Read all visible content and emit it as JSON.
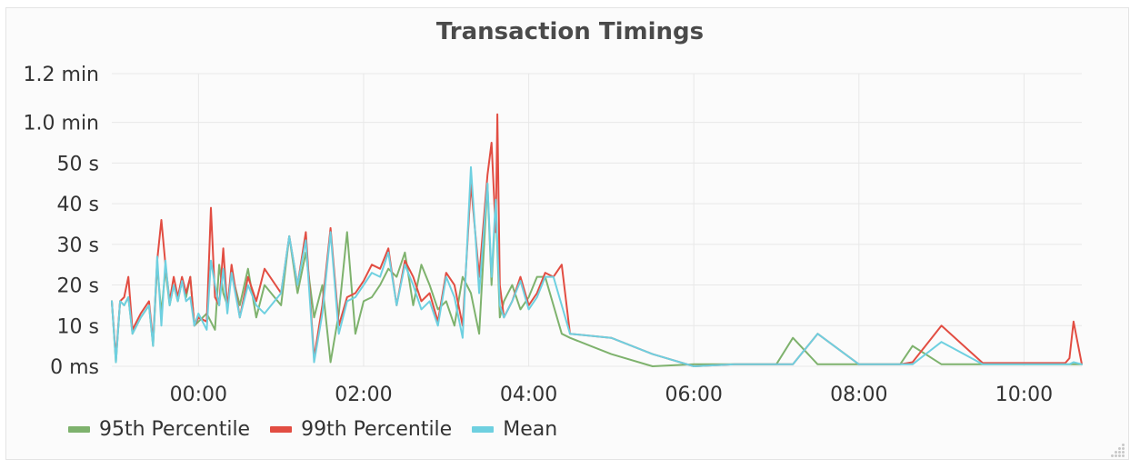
{
  "panel": {
    "title": "Transaction Timings"
  },
  "colors": {
    "p95": "#7eb26d",
    "p99": "#e24d42",
    "mean": "#6ed0e0",
    "grid": "#e8e8e8",
    "tick_text": "#333333"
  },
  "chart_data": {
    "type": "line",
    "title": "Transaction Timings",
    "xlabel": "",
    "ylabel": "",
    "x_unit": "hours (clock time)",
    "y_unit": "seconds",
    "xlim": [
      -1.05,
      10.7
    ],
    "ylim": [
      0,
      72
    ],
    "grid": true,
    "legend_position": "bottom-left",
    "y_ticks": [
      {
        "value": 0,
        "label": "0 ms"
      },
      {
        "value": 10,
        "label": "10 s"
      },
      {
        "value": 20,
        "label": "20 s"
      },
      {
        "value": 30,
        "label": "30 s"
      },
      {
        "value": 40,
        "label": "40 s"
      },
      {
        "value": 50,
        "label": "50 s"
      },
      {
        "value": 60,
        "label": "1.0 min"
      },
      {
        "value": 72,
        "label": "1.2 min"
      }
    ],
    "x_ticks": [
      {
        "value": 0,
        "label": "00:00"
      },
      {
        "value": 2,
        "label": "02:00"
      },
      {
        "value": 4,
        "label": "04:00"
      },
      {
        "value": 6,
        "label": "06:00"
      },
      {
        "value": 8,
        "label": "08:00"
      },
      {
        "value": 10,
        "label": "10:00"
      }
    ],
    "series": [
      {
        "name": "95th Percentile",
        "color": "#7eb26d",
        "x": [
          -1.05,
          -1.0,
          -0.95,
          -0.9,
          -0.85,
          -0.8,
          -0.7,
          -0.6,
          -0.55,
          -0.5,
          -0.45,
          -0.4,
          -0.35,
          -0.3,
          -0.25,
          -0.2,
          -0.15,
          -0.1,
          -0.05,
          0.1,
          0.2,
          0.25,
          0.3,
          0.35,
          0.4,
          0.5,
          0.6,
          0.7,
          0.8,
          1.0,
          1.1,
          1.2,
          1.3,
          1.4,
          1.5,
          1.6,
          1.7,
          1.8,
          1.9,
          2.0,
          2.1,
          2.2,
          2.3,
          2.4,
          2.5,
          2.6,
          2.7,
          2.8,
          2.9,
          3.0,
          3.1,
          3.2,
          3.3,
          3.4,
          3.5,
          3.55,
          3.6,
          3.65,
          3.7,
          3.8,
          3.9,
          4.0,
          4.1,
          4.2,
          4.3,
          4.4,
          4.5,
          5.0,
          5.5,
          6.0,
          6.5,
          7.0,
          7.2,
          7.5,
          8.0,
          8.5,
          8.65,
          9.0,
          9.5,
          10.0,
          10.5,
          10.7
        ],
        "y": [
          16,
          1,
          16,
          15,
          17,
          8,
          12,
          15,
          5,
          25,
          13,
          24,
          15,
          20,
          16,
          21,
          17,
          22,
          10,
          13,
          9,
          25,
          18,
          15,
          23,
          15,
          24,
          12,
          20,
          15,
          32,
          18,
          28,
          12,
          20,
          1,
          13,
          33,
          8,
          16,
          17,
          20,
          24,
          22,
          28,
          15,
          25,
          20,
          14,
          16,
          10,
          22,
          18,
          8,
          45,
          20,
          40,
          12,
          16,
          20,
          14,
          17,
          22,
          22,
          15,
          8,
          7,
          3,
          0,
          0.5,
          0.5,
          0.5,
          7,
          0.5,
          0.5,
          0.5,
          5,
          0.5,
          0.5,
          0.5,
          0.5,
          0.5
        ]
      },
      {
        "name": "99th Percentile",
        "color": "#e24d42",
        "x": [
          -1.05,
          -1.0,
          -0.95,
          -0.9,
          -0.85,
          -0.8,
          -0.7,
          -0.6,
          -0.55,
          -0.5,
          -0.45,
          -0.4,
          -0.35,
          -0.3,
          -0.25,
          -0.2,
          -0.15,
          -0.1,
          -0.05,
          0.0,
          0.1,
          0.15,
          0.2,
          0.25,
          0.3,
          0.35,
          0.4,
          0.5,
          0.6,
          0.7,
          0.8,
          1.0,
          1.1,
          1.2,
          1.3,
          1.4,
          1.5,
          1.6,
          1.7,
          1.8,
          1.9,
          2.0,
          2.1,
          2.2,
          2.3,
          2.4,
          2.5,
          2.6,
          2.7,
          2.8,
          2.9,
          3.0,
          3.1,
          3.2,
          3.3,
          3.4,
          3.5,
          3.55,
          3.6,
          3.62,
          3.65,
          3.7,
          3.8,
          3.9,
          4.0,
          4.1,
          4.2,
          4.3,
          4.4,
          4.5,
          5.0,
          5.5,
          6.0,
          6.5,
          7.0,
          7.2,
          7.5,
          8.0,
          8.5,
          8.65,
          9.0,
          9.5,
          10.0,
          10.5,
          10.55,
          10.6,
          10.7
        ],
        "y": [
          16,
          2,
          16,
          17,
          22,
          9,
          13,
          16,
          6,
          26,
          36,
          25,
          16,
          22,
          17,
          22,
          18,
          22,
          10,
          12,
          11,
          39,
          17,
          15,
          29,
          14,
          25,
          12,
          22,
          16,
          24,
          18,
          32,
          20,
          33,
          2,
          15,
          34,
          10,
          17,
          18,
          21,
          25,
          24,
          29,
          15,
          26,
          22,
          16,
          18,
          11,
          23,
          20,
          10,
          45,
          22,
          47,
          55,
          33,
          62,
          20,
          12,
          16,
          22,
          15,
          18,
          23,
          22,
          25,
          8,
          7,
          3,
          0,
          0.5,
          0.5,
          0.5,
          8,
          0.5,
          0.5,
          1,
          10,
          0.8,
          0.8,
          0.8,
          2,
          11,
          0.5
        ]
      },
      {
        "name": "Mean",
        "color": "#6ed0e0",
        "x": [
          -1.05,
          -1.0,
          -0.95,
          -0.9,
          -0.85,
          -0.8,
          -0.7,
          -0.6,
          -0.55,
          -0.5,
          -0.45,
          -0.4,
          -0.35,
          -0.3,
          -0.25,
          -0.2,
          -0.15,
          -0.1,
          -0.05,
          0.0,
          0.1,
          0.15,
          0.2,
          0.25,
          0.3,
          0.35,
          0.4,
          0.5,
          0.6,
          0.7,
          0.8,
          1.0,
          1.1,
          1.2,
          1.3,
          1.4,
          1.5,
          1.6,
          1.7,
          1.8,
          1.9,
          2.0,
          2.1,
          2.2,
          2.3,
          2.4,
          2.5,
          2.6,
          2.7,
          2.8,
          2.9,
          3.0,
          3.1,
          3.2,
          3.3,
          3.4,
          3.5,
          3.55,
          3.6,
          3.62,
          3.65,
          3.7,
          3.8,
          3.9,
          4.0,
          4.1,
          4.2,
          4.3,
          4.4,
          4.5,
          5.0,
          5.5,
          6.0,
          6.5,
          7.0,
          7.2,
          7.5,
          8.0,
          8.5,
          8.65,
          9.0,
          9.5,
          10.0,
          10.5,
          10.55,
          10.6,
          10.7
        ],
        "y": [
          16,
          1,
          16,
          15,
          17,
          8,
          12,
          15,
          5,
          27,
          10,
          26,
          15,
          20,
          16,
          21,
          16,
          17,
          10,
          13,
          9,
          26,
          20,
          15,
          24,
          13,
          23,
          12,
          20,
          15,
          13,
          18,
          32,
          20,
          31,
          1,
          13,
          33,
          8,
          16,
          17,
          20,
          23,
          22,
          28,
          15,
          25,
          20,
          14,
          16,
          10,
          22,
          17,
          7,
          49,
          18,
          45,
          22,
          41,
          30,
          15,
          12,
          16,
          21,
          14,
          17,
          22,
          22,
          15,
          8,
          7,
          3,
          0,
          0.5,
          0.5,
          0.5,
          8,
          0.5,
          0.5,
          0.5,
          6,
          0.5,
          0.5,
          0.5,
          0.5,
          1,
          0.5
        ]
      }
    ]
  },
  "legend": [
    {
      "label": "95th Percentile",
      "color": "#7eb26d"
    },
    {
      "label": "99th Percentile",
      "color": "#e24d42"
    },
    {
      "label": "Mean",
      "color": "#6ed0e0"
    }
  ]
}
